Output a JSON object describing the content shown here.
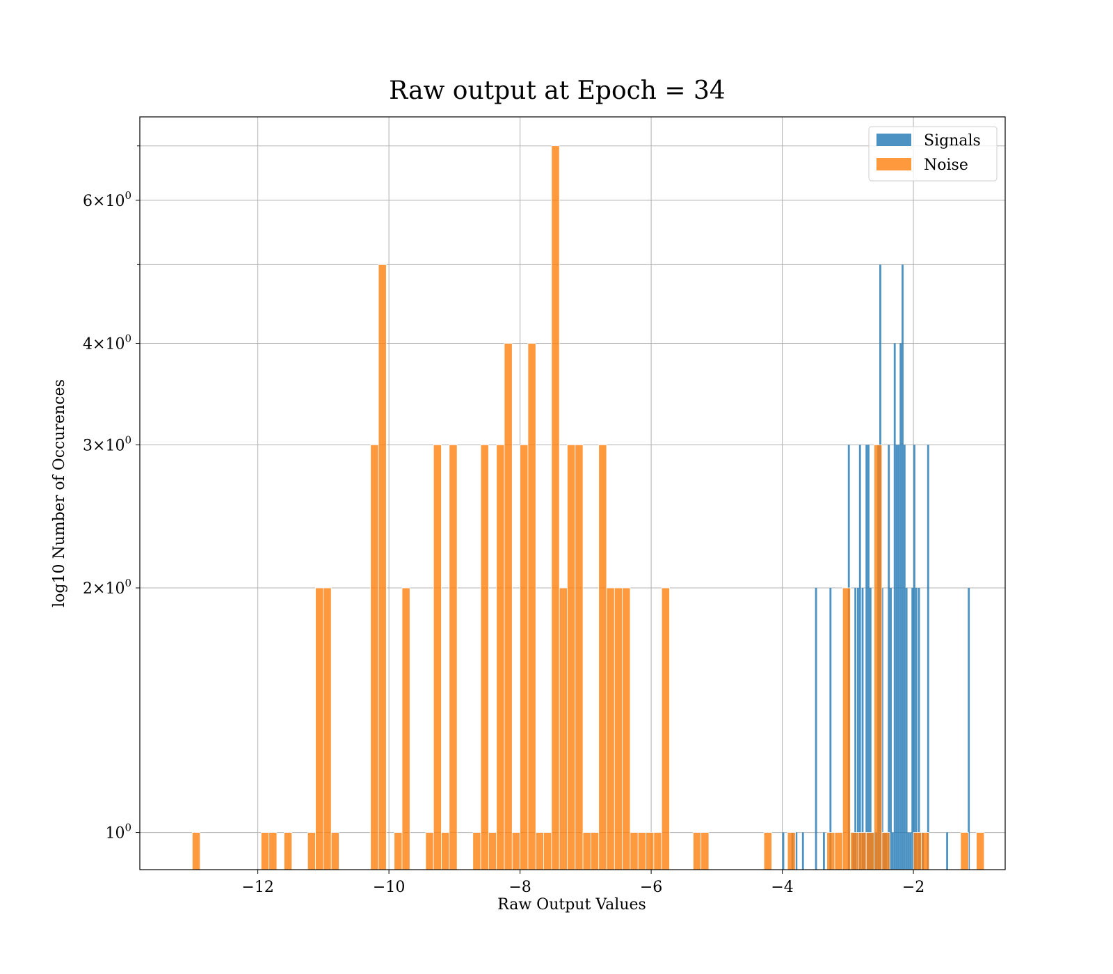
{
  "chart_data": {
    "type": "bar",
    "title": "Raw output at Epoch = 34",
    "xlabel": "Raw Output Values",
    "ylabel": "log10 Number of Occurences",
    "y_scale": "log",
    "xlim": [
      -13.8,
      -0.6
    ],
    "ylim": [
      0.9,
      7.6
    ],
    "x_ticks": [
      -12,
      -10,
      -8,
      -6,
      -4,
      -2
    ],
    "x_tick_labels": [
      "−12",
      "−10",
      "−8",
      "−6",
      "−4",
      "−2"
    ],
    "y_ticks": [
      1,
      2,
      3,
      4,
      6
    ],
    "y_tick_bases": [
      "10",
      "2×10",
      "3×10",
      "4×10",
      "6×10"
    ],
    "y_tick_exps": [
      "0",
      "0",
      "0",
      "0",
      "0"
    ],
    "y_minor_ticks": [
      5,
      7
    ],
    "grid": true,
    "legend_position": "top-right",
    "series": [
      {
        "name": "Signals",
        "color": "#1f77b4",
        "bin_width": 0.03,
        "bins": [
          [
            -4.0,
            1
          ],
          [
            -3.86,
            1
          ],
          [
            -3.8,
            1
          ],
          [
            -3.7,
            1
          ],
          [
            -3.5,
            2
          ],
          [
            -3.38,
            1
          ],
          [
            -3.28,
            2
          ],
          [
            -3.0,
            3
          ],
          [
            -2.93,
            1
          ],
          [
            -2.9,
            2
          ],
          [
            -2.86,
            2
          ],
          [
            -2.83,
            3
          ],
          [
            -2.79,
            2
          ],
          [
            -2.76,
            1
          ],
          [
            -2.73,
            3
          ],
          [
            -2.7,
            3
          ],
          [
            -2.67,
            2
          ],
          [
            -2.64,
            1
          ],
          [
            -2.61,
            1
          ],
          [
            -2.58,
            1
          ],
          [
            -2.55,
            3
          ],
          [
            -2.52,
            5
          ],
          [
            -2.49,
            2
          ],
          [
            -2.46,
            1
          ],
          [
            -2.43,
            1
          ],
          [
            -2.39,
            3
          ],
          [
            -2.36,
            2
          ],
          [
            -2.33,
            1
          ],
          [
            -2.3,
            4
          ],
          [
            -2.27,
            3
          ],
          [
            -2.24,
            3
          ],
          [
            -2.21,
            4
          ],
          [
            -2.18,
            5
          ],
          [
            -2.15,
            3
          ],
          [
            -2.12,
            2
          ],
          [
            -2.09,
            1
          ],
          [
            -2.06,
            1
          ],
          [
            -2.03,
            2
          ],
          [
            -2.0,
            3
          ],
          [
            -1.97,
            2
          ],
          [
            -1.93,
            2
          ],
          [
            -1.9,
            1
          ],
          [
            -1.87,
            1
          ],
          [
            -1.79,
            3
          ],
          [
            -1.5,
            1
          ],
          [
            -1.17,
            2
          ]
        ]
      },
      {
        "name": "Noise",
        "color": "#ff7f0e",
        "bin_width": 0.12,
        "bins": [
          [
            -13.0,
            1
          ],
          [
            -11.95,
            1
          ],
          [
            -11.83,
            1
          ],
          [
            -11.6,
            1
          ],
          [
            -11.24,
            1
          ],
          [
            -11.12,
            2
          ],
          [
            -11.0,
            2
          ],
          [
            -10.88,
            1
          ],
          [
            -10.28,
            3
          ],
          [
            -10.16,
            5
          ],
          [
            -9.92,
            1
          ],
          [
            -9.8,
            2
          ],
          [
            -9.44,
            1
          ],
          [
            -9.32,
            3
          ],
          [
            -9.2,
            1
          ],
          [
            -9.08,
            3
          ],
          [
            -8.72,
            1
          ],
          [
            -8.6,
            3
          ],
          [
            -8.48,
            1
          ],
          [
            -8.36,
            3
          ],
          [
            -8.24,
            4
          ],
          [
            -8.12,
            1
          ],
          [
            -8.0,
            3
          ],
          [
            -7.88,
            4
          ],
          [
            -7.76,
            1
          ],
          [
            -7.64,
            1
          ],
          [
            -7.52,
            7
          ],
          [
            -7.4,
            2
          ],
          [
            -7.28,
            3
          ],
          [
            -7.16,
            3
          ],
          [
            -7.04,
            1
          ],
          [
            -6.92,
            1
          ],
          [
            -6.8,
            3
          ],
          [
            -6.68,
            2
          ],
          [
            -6.56,
            2
          ],
          [
            -6.44,
            2
          ],
          [
            -6.32,
            1
          ],
          [
            -6.2,
            1
          ],
          [
            -6.08,
            1
          ],
          [
            -5.96,
            1
          ],
          [
            -5.84,
            2
          ],
          [
            -5.36,
            1
          ],
          [
            -5.24,
            1
          ],
          [
            -4.28,
            1
          ],
          [
            -3.92,
            1
          ],
          [
            -3.32,
            1
          ],
          [
            -3.2,
            1
          ],
          [
            -3.08,
            2
          ],
          [
            -2.96,
            1
          ],
          [
            -2.84,
            1
          ],
          [
            -2.72,
            1
          ],
          [
            -2.6,
            3
          ],
          [
            -2.48,
            1
          ],
          [
            -2.0,
            1
          ],
          [
            -1.88,
            1
          ],
          [
            -1.28,
            1
          ],
          [
            -1.04,
            1
          ]
        ]
      }
    ]
  }
}
